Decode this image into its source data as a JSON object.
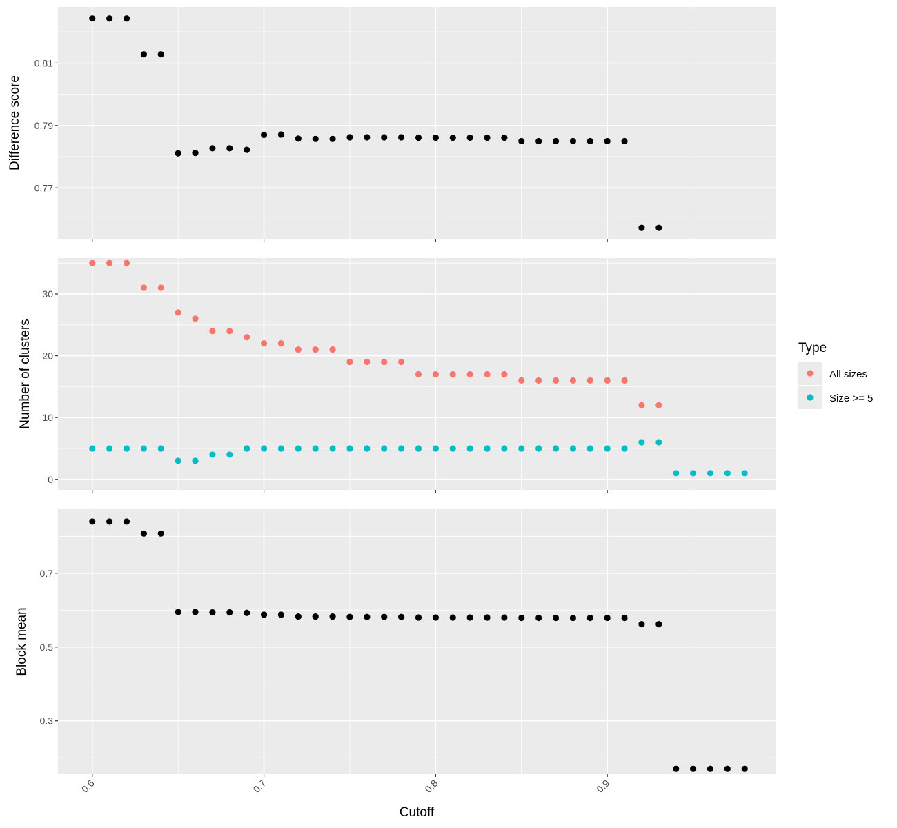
{
  "chart_data": {
    "type": "scatter",
    "x_axis": {
      "label": "Cutoff",
      "range": [
        0.58,
        0.998
      ],
      "ticks": [
        0.6,
        0.7,
        0.8,
        0.9
      ],
      "tick_labels": [
        "0.6",
        "0.7",
        "0.8",
        "0.9"
      ],
      "tick_label_rotation_deg": -45
    },
    "x": [
      0.6,
      0.61,
      0.62,
      0.63,
      0.64,
      0.65,
      0.66,
      0.67,
      0.68,
      0.69,
      0.7,
      0.71,
      0.72,
      0.73,
      0.74,
      0.75,
      0.76,
      0.77,
      0.78,
      0.79,
      0.8,
      0.81,
      0.82,
      0.83,
      0.84,
      0.85,
      0.86,
      0.87,
      0.88,
      0.89,
      0.9,
      0.91,
      0.92,
      0.93,
      0.94,
      0.95,
      0.96,
      0.97,
      0.98
    ],
    "grid": true,
    "panels": [
      {
        "ylabel": "Difference score",
        "ylim": [
          0.7537,
          0.828
        ],
        "yticks": [
          0.77,
          0.79,
          0.81
        ],
        "ytick_labels": [
          "0.77",
          "0.79",
          "0.81"
        ],
        "series": [
          {
            "color": "#000000",
            "values": [
              0.8243,
              0.8243,
              0.8243,
              0.8128,
              0.8128,
              0.7811,
              0.7812,
              0.7827,
              0.7827,
              0.7822,
              0.787,
              0.7871,
              0.7858,
              0.7857,
              0.7857,
              0.7862,
              0.7862,
              0.7862,
              0.7862,
              0.7861,
              0.7861,
              0.7861,
              0.7861,
              0.7861,
              0.7861,
              0.785,
              0.785,
              0.785,
              0.785,
              0.785,
              0.785,
              0.785,
              0.7572,
              0.7572,
              null,
              null,
              null,
              null,
              null
            ]
          }
        ]
      },
      {
        "ylabel": "Number of clusters",
        "ylim": [
          -1.7,
          35.8
        ],
        "yticks": [
          0,
          10,
          20,
          30
        ],
        "ytick_labels": [
          "0",
          "10",
          "20",
          "30"
        ],
        "series": [
          {
            "name": "All sizes",
            "color": "#F8766D",
            "values": [
              35,
              35,
              35,
              31,
              31,
              27,
              26,
              24,
              24,
              23,
              22,
              22,
              21,
              21,
              21,
              19,
              19,
              19,
              19,
              17,
              17,
              17,
              17,
              17,
              17,
              16,
              16,
              16,
              16,
              16,
              16,
              16,
              12,
              12,
              null,
              null,
              null,
              null,
              null
            ]
          },
          {
            "name": "Size >= 5",
            "color": "#00BFC4",
            "values": [
              5,
              5,
              5,
              5,
              5,
              3,
              3,
              4,
              4,
              5,
              5,
              5,
              5,
              5,
              5,
              5,
              5,
              5,
              5,
              5,
              5,
              5,
              5,
              5,
              5,
              5,
              5,
              5,
              5,
              5,
              5,
              5,
              6,
              6,
              1,
              1,
              1,
              1,
              1
            ]
          }
        ]
      },
      {
        "ylabel": "Block mean",
        "ylim": [
          0.1555,
          0.8735
        ],
        "yticks": [
          0.3,
          0.5,
          0.7
        ],
        "ytick_labels": [
          "0.3",
          "0.5",
          "0.7"
        ],
        "series": [
          {
            "color": "#000000",
            "values": [
              0.84,
              0.84,
              0.84,
              0.8075,
              0.8075,
              0.595,
              0.595,
              0.594,
              0.594,
              0.5925,
              0.5875,
              0.5875,
              0.5825,
              0.5825,
              0.5825,
              0.5815,
              0.5815,
              0.5815,
              0.5815,
              0.58,
              0.58,
              0.58,
              0.58,
              0.58,
              0.58,
              0.579,
              0.579,
              0.579,
              0.579,
              0.579,
              0.579,
              0.579,
              0.562,
              0.562,
              0.17,
              0.17,
              0.17,
              0.17,
              0.17
            ]
          }
        ]
      }
    ],
    "legend": {
      "title": "Type",
      "placement": "right",
      "entries": [
        {
          "label": "All sizes",
          "color": "#F8766D"
        },
        {
          "label": "Size >= 5",
          "color": "#00BFC4"
        }
      ]
    }
  }
}
